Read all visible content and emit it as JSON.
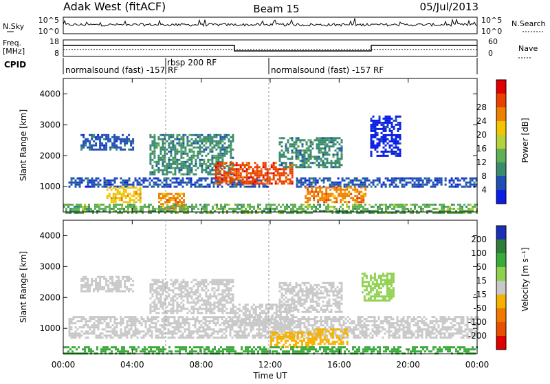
{
  "header": {
    "station": "Adak West (fitACF)",
    "beam": "Beam 15",
    "date": "05/Jul/2013"
  },
  "top_panels": {
    "noise_left_label": "N.Sky",
    "noise_right_label": "N.Search",
    "noise_ticks_left": [
      "10^5",
      "10^0"
    ],
    "noise_ticks_right": [
      "10^5",
      "10^0"
    ],
    "freq_label": "Freq.",
    "freq_unit": "[MHz]",
    "freq_ticks": [
      "18",
      "8"
    ],
    "nave_label": "Nave",
    "nave_ticks": [
      "60",
      "0"
    ],
    "cpid_label": "CPID",
    "cpid_segments": [
      {
        "label": "normalsound (fast) -157 RF",
        "start_hour": 0
      },
      {
        "label": "rbsp 200 RF",
        "start_hour": 6
      },
      {
        "label": "normalsound (fast) -157 RF",
        "start_hour": 12
      }
    ]
  },
  "chart_data": [
    {
      "type": "heatmap",
      "name": "power",
      "xlabel": "",
      "ylabel": "Slant Range [km]",
      "x_ticks": [
        "00:00",
        "04:00",
        "08:00",
        "12:00",
        "16:00",
        "20:00",
        "00:00"
      ],
      "y_ticks": [
        1000,
        2000,
        3000,
        4000
      ],
      "xlim_hours": [
        0,
        24
      ],
      "ylim_km": [
        180,
        4500
      ],
      "colorbar": {
        "label": "Power [dB]",
        "ticks": [
          "4",
          "8",
          "12",
          "16",
          "20",
          "24",
          "28"
        ],
        "colors": [
          "#0a1ee6",
          "#1f4fb4",
          "#3a8a70",
          "#5faf55",
          "#b7d13a",
          "#f5c400",
          "#f08000",
          "#ea4000",
          "#e00000"
        ]
      },
      "regions": [
        {
          "t0": 0.3,
          "t1": 11.8,
          "r0": 1000,
          "r1": 1300,
          "level": 1
        },
        {
          "t0": 13.5,
          "t1": 24,
          "r0": 1000,
          "r1": 1300,
          "level": 1
        },
        {
          "t0": 1,
          "t1": 4,
          "r0": 2200,
          "r1": 2700,
          "level": 1
        },
        {
          "t0": 5,
          "t1": 9.8,
          "r0": 1400,
          "r1": 2700,
          "level": 2
        },
        {
          "t0": 8.8,
          "t1": 13.3,
          "r0": 1100,
          "r1": 1800,
          "level": 7
        },
        {
          "t0": 14,
          "t1": 17.5,
          "r0": 500,
          "r1": 1000,
          "level": 6
        },
        {
          "t0": 2.5,
          "t1": 4.5,
          "r0": 500,
          "r1": 1000,
          "level": 5
        },
        {
          "t0": 5.5,
          "t1": 7,
          "r0": 200,
          "r1": 800,
          "level": 6
        },
        {
          "t0": 12.5,
          "t1": 16.2,
          "r0": 1600,
          "r1": 2600,
          "level": 2
        },
        {
          "t0": 17.8,
          "t1": 19.5,
          "r0": 2000,
          "r1": 3300,
          "level": 0
        },
        {
          "t0": 0,
          "t1": 24,
          "r0": 180,
          "r1": 450,
          "level": 3
        }
      ]
    },
    {
      "type": "heatmap",
      "name": "velocity",
      "xlabel": "Time UT",
      "ylabel": "Slant Range [km]",
      "x_ticks": [
        "00:00",
        "04:00",
        "08:00",
        "12:00",
        "16:00",
        "20:00",
        "00:00"
      ],
      "y_ticks": [
        1000,
        2000,
        3000,
        4000
      ],
      "xlim_hours": [
        0,
        24
      ],
      "ylim_km": [
        180,
        4500
      ],
      "colorbar": {
        "label": "Velocity [m s⁻¹]",
        "ticks": [
          "200",
          "100",
          "50",
          "15",
          "-15",
          "-50",
          "-100",
          "-200"
        ],
        "colors": [
          "#1a2fb5",
          "#2e7d3a",
          "#3aaa3a",
          "#8fd14f",
          "#c8c8c8",
          "#f5b000",
          "#f07800",
          "#e85000",
          "#e00000"
        ]
      },
      "regions": [
        {
          "t0": 0.3,
          "t1": 24,
          "r0": 700,
          "r1": 1400,
          "color": "#c8c8c8"
        },
        {
          "t0": 1,
          "t1": 4,
          "r0": 2200,
          "r1": 2700,
          "color": "#c8c8c8"
        },
        {
          "t0": 5,
          "t1": 9.8,
          "r0": 1500,
          "r1": 2600,
          "color": "#c8c8c8"
        },
        {
          "t0": 9.8,
          "t1": 13.3,
          "r0": 1100,
          "r1": 1800,
          "color": "#c8c8c8"
        },
        {
          "t0": 12,
          "t1": 14.5,
          "r0": 400,
          "r1": 900,
          "color": "#f5b000"
        },
        {
          "t0": 14.5,
          "t1": 16.5,
          "r0": 500,
          "r1": 1000,
          "color": "#f5b000"
        },
        {
          "t0": 12.5,
          "t1": 16.2,
          "r0": 1500,
          "r1": 2500,
          "color": "#c8c8c8"
        },
        {
          "t0": 17.3,
          "t1": 19.2,
          "r0": 1900,
          "r1": 2800,
          "color": "#8fd14f"
        },
        {
          "t0": 0,
          "t1": 24,
          "r0": 180,
          "r1": 420,
          "color": "#3aaa3a"
        }
      ]
    }
  ]
}
